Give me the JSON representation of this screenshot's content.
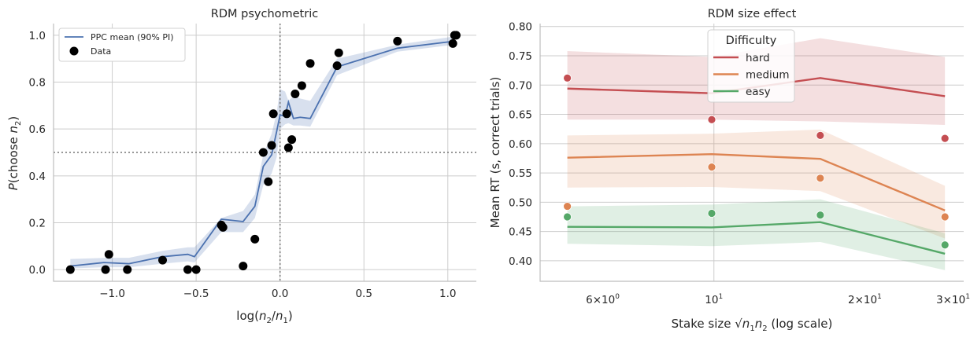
{
  "chart_data": [
    {
      "type": "line",
      "title": "RDM psychometric",
      "xlabel": "log(n2/n1)",
      "ylabel": "P(choose n2)",
      "xlim": [
        -1.35,
        1.17
      ],
      "ylim": [
        -0.05,
        1.05
      ],
      "x_ticks": [
        -1.0,
        -0.5,
        0.0,
        0.5,
        1.0
      ],
      "x_tick_labels": [
        "−1.0",
        "−0.5",
        "0.0",
        "0.5",
        "1.0"
      ],
      "y_ticks": [
        0.0,
        0.2,
        0.4,
        0.6,
        0.8,
        1.0
      ],
      "y_tick_labels": [
        "0.0",
        "0.2",
        "0.4",
        "0.6",
        "0.8",
        "1.0"
      ],
      "grid": true,
      "legend_position": "top-left",
      "reference_lines": {
        "y": 0.5,
        "x": 0.0
      },
      "series": [
        {
          "name": "PPC mean (90% PI)",
          "color": "#4c72b0",
          "x": [
            -1.25,
            -1.05,
            -0.9,
            -0.7,
            -0.55,
            -0.51,
            -0.35,
            -0.22,
            -0.15,
            -0.1,
            -0.05,
            -0.02,
            0.0,
            0.03,
            0.05,
            0.08,
            0.12,
            0.18,
            0.34,
            0.7,
            1.04
          ],
          "y": [
            0.015,
            0.03,
            0.025,
            0.055,
            0.065,
            0.055,
            0.215,
            0.205,
            0.27,
            0.44,
            0.49,
            0.59,
            0.66,
            0.655,
            0.715,
            0.645,
            0.65,
            0.645,
            0.865,
            0.945,
            0.975
          ],
          "lower": [
            0.005,
            0.01,
            0.01,
            0.025,
            0.035,
            0.03,
            0.16,
            0.16,
            0.22,
            0.36,
            0.41,
            0.48,
            0.6,
            0.62,
            0.625,
            0.615,
            0.615,
            0.61,
            0.83,
            0.93,
            0.96
          ],
          "upper": [
            0.045,
            0.05,
            0.05,
            0.08,
            0.095,
            0.095,
            0.22,
            0.25,
            0.32,
            0.49,
            0.58,
            0.67,
            0.77,
            0.76,
            0.72,
            0.74,
            0.73,
            0.72,
            0.9,
            0.96,
            0.995
          ]
        },
        {
          "name": "Data",
          "color": "#000000",
          "type": "scatter",
          "x": [
            -1.25,
            -1.04,
            -1.02,
            -0.91,
            -0.7,
            -0.55,
            -0.5,
            -0.35,
            -0.34,
            -0.22,
            -0.15,
            -0.1,
            -0.07,
            -0.05,
            -0.04,
            0.04,
            0.05,
            0.07,
            0.09,
            0.13,
            0.18,
            0.34,
            0.35,
            0.7,
            1.03,
            1.04,
            1.05
          ],
          "y": [
            0.0,
            0.0,
            0.065,
            0.0,
            0.04,
            0.0,
            0.0,
            0.19,
            0.18,
            0.015,
            0.13,
            0.5,
            0.375,
            0.53,
            0.665,
            0.665,
            0.52,
            0.555,
            0.75,
            0.785,
            0.88,
            0.87,
            0.925,
            0.975,
            0.965,
            1.0,
            1.0
          ]
        }
      ]
    },
    {
      "type": "line",
      "title": "RDM size effect",
      "xlabel": "Stake size  √n1n2  (log scale)",
      "ylabel": "Mean RT (s, correct trials)",
      "x_scale": "log",
      "xlim": [
        4.5,
        31.5
      ],
      "ylim": [
        0.365,
        0.805
      ],
      "x_ticks": [
        6,
        10,
        20,
        30
      ],
      "x_tick_labels": [
        {
          "mantissa": "6×10",
          "exp": "0"
        },
        {
          "mantissa": "10",
          "exp": "1"
        },
        {
          "mantissa": "2×10",
          "exp": "1"
        },
        {
          "mantissa": "3×10",
          "exp": "1"
        }
      ],
      "y_ticks": [
        0.4,
        0.45,
        0.5,
        0.55,
        0.6,
        0.65,
        0.7,
        0.75,
        0.8
      ],
      "y_tick_labels": [
        "0.40",
        "0.45",
        "0.50",
        "0.55",
        "0.60",
        "0.65",
        "0.70",
        "0.75",
        "0.80"
      ],
      "grid": true,
      "legend_title": "Difficulty",
      "legend_position": "top-center",
      "x": [
        5.1,
        9.9,
        16.3,
        28.9
      ],
      "series": [
        {
          "name": "hard",
          "color": "#c44e52",
          "model": [
            0.694,
            0.686,
            0.712,
            0.681
          ],
          "lower": [
            0.641,
            0.641,
            0.638,
            0.632
          ],
          "upper": [
            0.758,
            0.748,
            0.78,
            0.748
          ],
          "data": [
            0.712,
            0.641,
            0.614,
            0.609
          ]
        },
        {
          "name": "medium",
          "color": "#dd8452",
          "model": [
            0.576,
            0.582,
            0.574,
            0.486
          ],
          "lower": [
            0.525,
            0.526,
            0.519,
            0.438
          ],
          "upper": [
            0.614,
            0.617,
            0.624,
            0.528
          ],
          "data": [
            0.493,
            0.56,
            0.541,
            0.475
          ]
        },
        {
          "name": "easy",
          "color": "#55a868",
          "model": [
            0.458,
            0.457,
            0.466,
            0.412
          ],
          "lower": [
            0.429,
            0.425,
            0.432,
            0.384
          ],
          "upper": [
            0.493,
            0.496,
            0.505,
            0.447
          ],
          "data": [
            0.475,
            0.481,
            0.478,
            0.427
          ]
        }
      ]
    }
  ]
}
